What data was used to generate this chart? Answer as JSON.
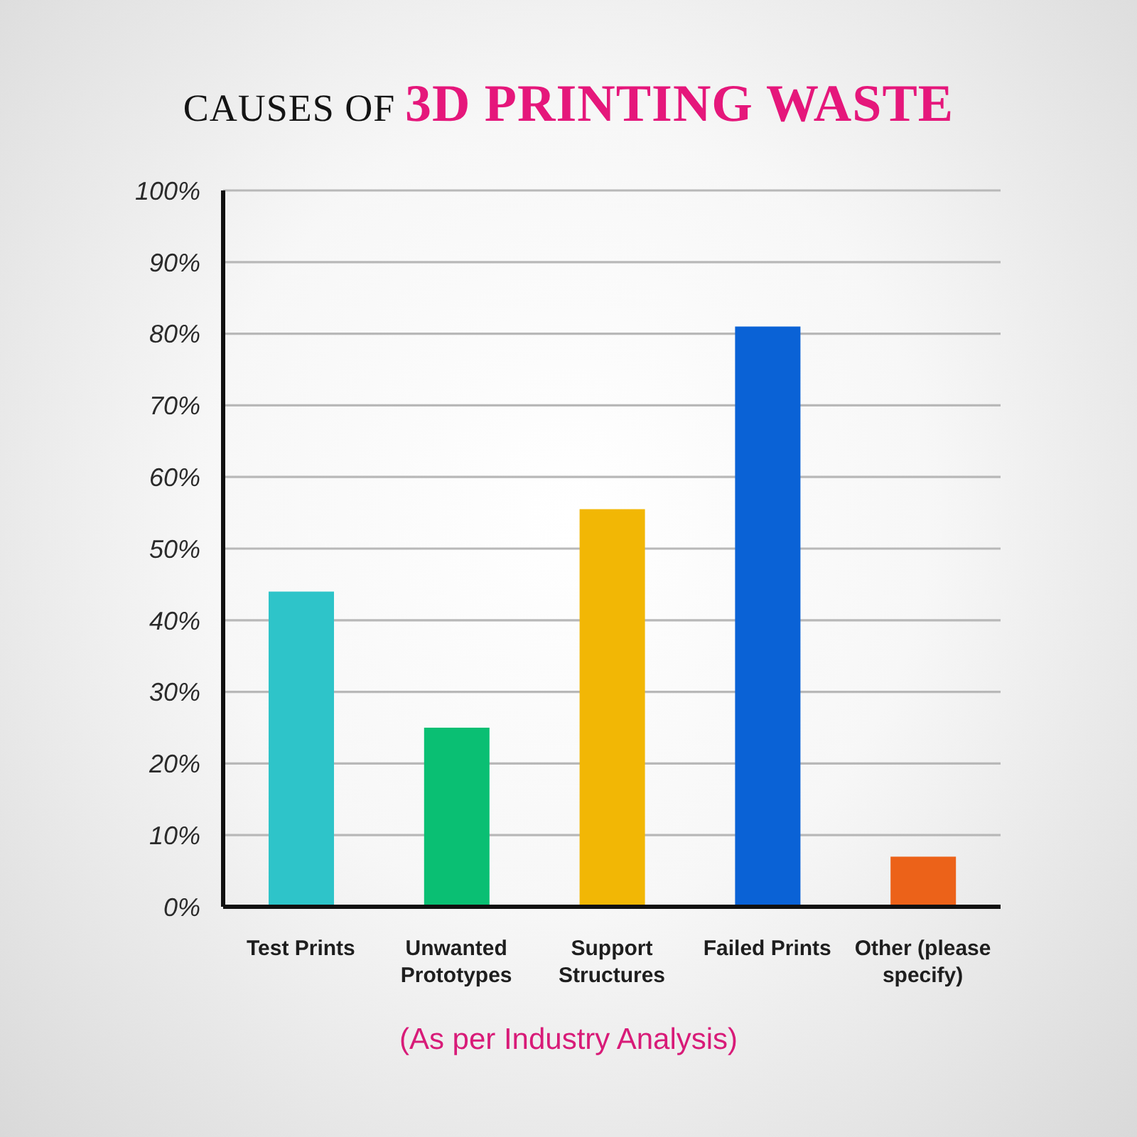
{
  "chart_data": {
    "type": "bar",
    "title": "CAUSES OF 3D PRINTING WASTE",
    "annotations": [
      "(As per Industry Analysis)"
    ],
    "categories": [
      "Test Prints",
      "Unwanted Prototypes",
      "Support Structures",
      "Failed Prints",
      "Other (please specify)"
    ],
    "values": [
      44,
      25,
      55.5,
      81,
      7
    ],
    "colors": [
      "#2ec4c9",
      "#0abf73",
      "#f2b705",
      "#0a62d6",
      "#ec6219"
    ],
    "ylim": [
      0,
      100
    ],
    "yticks": [
      {
        "value": 0,
        "label": "0%"
      },
      {
        "value": 10,
        "label": "10%"
      },
      {
        "value": 20,
        "label": "20%"
      },
      {
        "value": 30,
        "label": "30%"
      },
      {
        "value": 40,
        "label": "40%"
      },
      {
        "value": 50,
        "label": "50%"
      },
      {
        "value": 60,
        "label": "60%"
      },
      {
        "value": 70,
        "label": "70%"
      },
      {
        "value": 80,
        "label": "80%"
      },
      {
        "value": 90,
        "label": "90%"
      },
      {
        "value": 100,
        "label": "100%"
      }
    ],
    "grid": "y"
  }
}
